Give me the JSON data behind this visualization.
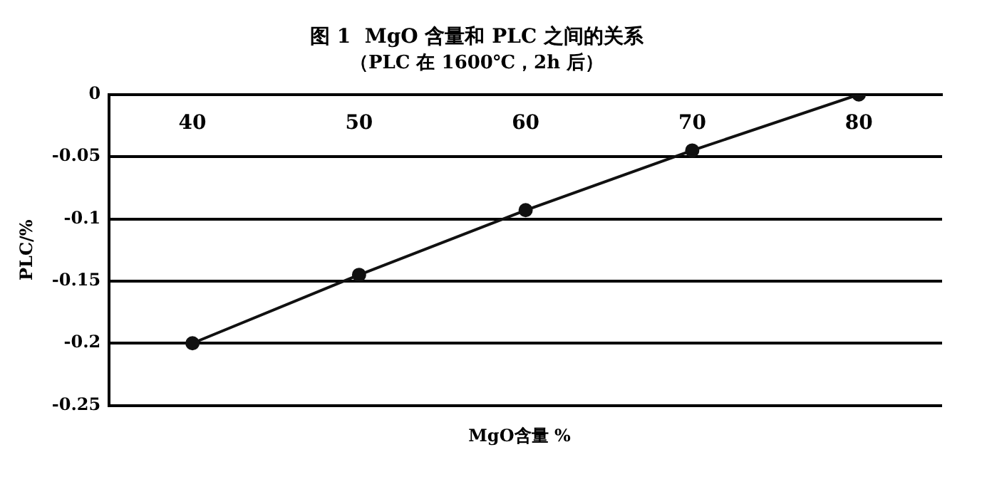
{
  "chart_data": {
    "type": "line",
    "title": "图 1  MgO 含量和 PLC 之间的关系",
    "subtitle": "（PLC 在 1600℃，2h 后）",
    "xlabel": "MgO含量 %",
    "ylabel": "PLC/%",
    "categories": [
      "40",
      "50",
      "60",
      "70",
      "80"
    ],
    "series": [
      {
        "color": "#111111",
        "values": [
          -0.2,
          -0.145,
          -0.093,
          -0.045,
          0
        ]
      }
    ],
    "ylim": [
      -0.25,
      0
    ],
    "yticks": [
      0,
      -0.05,
      -0.1,
      -0.15,
      -0.2,
      -0.25
    ],
    "grid": "y",
    "marker": "circle",
    "line_style": "solid",
    "legend": false
  }
}
